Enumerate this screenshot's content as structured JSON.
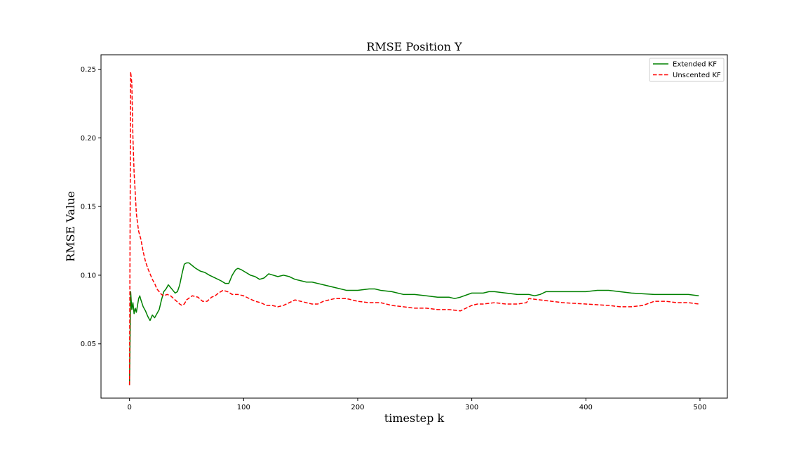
{
  "chart_data": {
    "type": "line",
    "title": "RMSE Position Y",
    "xlabel": "timestep k",
    "ylabel": "RMSE Value",
    "xlim": [
      -25,
      524
    ],
    "ylim": [
      0.0105,
      0.2605
    ],
    "xticks": [
      0,
      100,
      200,
      300,
      400,
      500
    ],
    "yticks": [
      0.05,
      0.1,
      0.15,
      0.2,
      0.25
    ],
    "grid": false,
    "legend_position": "top-right",
    "series": [
      {
        "name": "Extended KF",
        "color": "#008000",
        "style": "solid",
        "x": [
          0,
          1,
          2,
          3,
          4,
          5,
          6,
          7,
          8,
          9,
          10,
          12,
          14,
          16,
          18,
          20,
          22,
          24,
          26,
          28,
          30,
          32,
          34,
          36,
          38,
          40,
          42,
          44,
          46,
          48,
          50,
          52,
          55,
          58,
          62,
          66,
          70,
          75,
          80,
          84,
          87,
          90,
          93,
          95,
          98,
          102,
          106,
          110,
          114,
          118,
          122,
          126,
          130,
          135,
          140,
          145,
          150,
          155,
          160,
          165,
          170,
          180,
          190,
          200,
          210,
          215,
          220,
          230,
          240,
          250,
          260,
          270,
          280,
          285,
          290,
          300,
          305,
          310,
          315,
          320,
          330,
          340,
          350,
          355,
          360,
          365,
          380,
          400,
          410,
          420,
          440,
          460,
          470,
          480,
          490,
          499
        ],
        "y": [
          0.02,
          0.088,
          0.075,
          0.08,
          0.072,
          0.076,
          0.073,
          0.078,
          0.083,
          0.085,
          0.082,
          0.077,
          0.074,
          0.07,
          0.067,
          0.071,
          0.069,
          0.072,
          0.075,
          0.082,
          0.088,
          0.09,
          0.093,
          0.091,
          0.089,
          0.087,
          0.088,
          0.093,
          0.101,
          0.108,
          0.109,
          0.109,
          0.107,
          0.105,
          0.103,
          0.102,
          0.1,
          0.098,
          0.096,
          0.094,
          0.094,
          0.1,
          0.104,
          0.105,
          0.104,
          0.102,
          0.1,
          0.099,
          0.097,
          0.098,
          0.101,
          0.1,
          0.099,
          0.1,
          0.099,
          0.097,
          0.096,
          0.095,
          0.095,
          0.094,
          0.093,
          0.091,
          0.089,
          0.089,
          0.09,
          0.09,
          0.089,
          0.088,
          0.086,
          0.086,
          0.085,
          0.084,
          0.084,
          0.083,
          0.084,
          0.087,
          0.087,
          0.087,
          0.088,
          0.088,
          0.087,
          0.086,
          0.086,
          0.085,
          0.086,
          0.088,
          0.088,
          0.088,
          0.089,
          0.089,
          0.087,
          0.086,
          0.086,
          0.086,
          0.086,
          0.085
        ]
      },
      {
        "name": "Unscented KF",
        "color": "#ff0000",
        "style": "dashed",
        "x": [
          0,
          1,
          2,
          3,
          4,
          5,
          6,
          7,
          8,
          10,
          12,
          14,
          16,
          18,
          20,
          22,
          24,
          26,
          28,
          30,
          33,
          36,
          40,
          44,
          46,
          48,
          50,
          55,
          60,
          64,
          68,
          72,
          75,
          78,
          82,
          86,
          90,
          95,
          100,
          105,
          110,
          115,
          120,
          125,
          130,
          135,
          140,
          145,
          150,
          155,
          160,
          165,
          170,
          175,
          180,
          190,
          200,
          210,
          220,
          230,
          240,
          250,
          260,
          270,
          280,
          290,
          295,
          300,
          305,
          310,
          320,
          330,
          340,
          348,
          350,
          360,
          370,
          380,
          400,
          420,
          430,
          440,
          450,
          460,
          470,
          480,
          490,
          499
        ],
        "y": [
          0.02,
          0.248,
          0.24,
          0.2,
          0.175,
          0.16,
          0.145,
          0.138,
          0.132,
          0.126,
          0.117,
          0.11,
          0.105,
          0.101,
          0.097,
          0.094,
          0.09,
          0.088,
          0.086,
          0.085,
          0.086,
          0.085,
          0.082,
          0.079,
          0.078,
          0.079,
          0.082,
          0.085,
          0.084,
          0.081,
          0.081,
          0.084,
          0.085,
          0.087,
          0.089,
          0.088,
          0.086,
          0.086,
          0.085,
          0.083,
          0.081,
          0.08,
          0.078,
          0.078,
          0.077,
          0.078,
          0.08,
          0.082,
          0.081,
          0.08,
          0.079,
          0.079,
          0.081,
          0.082,
          0.083,
          0.083,
          0.081,
          0.08,
          0.08,
          0.078,
          0.077,
          0.076,
          0.076,
          0.075,
          0.075,
          0.074,
          0.076,
          0.078,
          0.079,
          0.079,
          0.08,
          0.079,
          0.079,
          0.08,
          0.083,
          0.082,
          0.081,
          0.08,
          0.079,
          0.078,
          0.077,
          0.077,
          0.078,
          0.081,
          0.081,
          0.08,
          0.08,
          0.079
        ]
      }
    ]
  }
}
